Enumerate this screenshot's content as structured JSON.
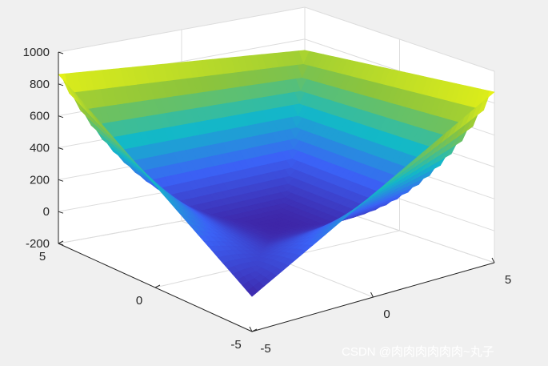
{
  "chart_data": {
    "type": "surface",
    "title": "",
    "xlabel": "",
    "ylabel": "",
    "zlabel": "",
    "xlim": [
      -5,
      5
    ],
    "ylim": [
      -5,
      5
    ],
    "zlim": [
      -200,
      1000
    ],
    "x_ticks": [
      "-5",
      "0",
      "5"
    ],
    "y_ticks": [
      "-5",
      "0",
      "5"
    ],
    "z_ticks": [
      "-200",
      "0",
      "200",
      "400",
      "600",
      "800",
      "1000"
    ],
    "grid": true,
    "colormap": "parula",
    "colors": {
      "low": "#3e26a8",
      "mid_low": "#3b62f6",
      "mid": "#13b9c7",
      "mid_high": "#8cc43c",
      "high": "#f9fb0e"
    },
    "grid_resolution": 41,
    "corner_values": [
      {
        "x": -5,
        "y": 5,
        "z": 860
      },
      {
        "x": 5,
        "y": -5,
        "z": 870
      },
      {
        "x": 5,
        "y": 5,
        "z": 730
      },
      {
        "x": -5,
        "y": -5,
        "z": 20
      }
    ],
    "minimum": {
      "x": 0,
      "y": 0,
      "z": 15
    }
  },
  "watermark": "CSDN @肉肉肉肉肉肉~丸子"
}
